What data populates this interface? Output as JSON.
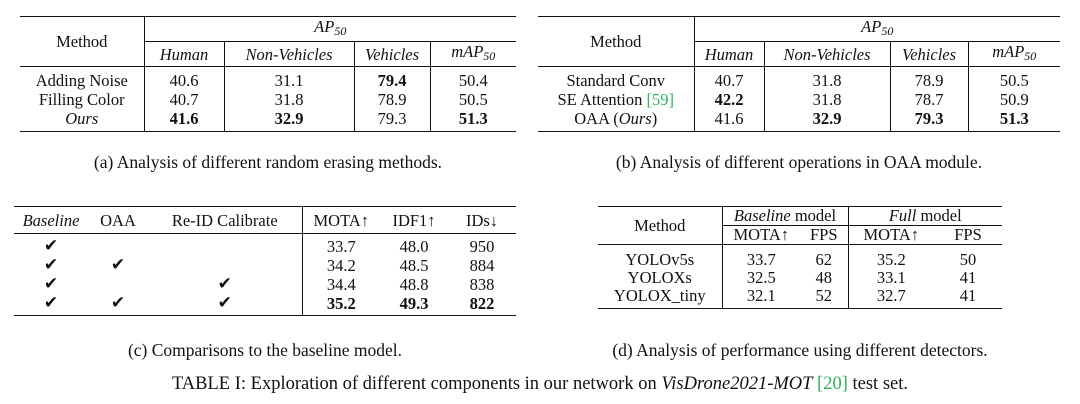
{
  "table_a": {
    "method_header": "Method",
    "group_header": "AP",
    "group_sub": "50",
    "col_human": "Human",
    "col_nonveh": "Non-Vehicles",
    "col_veh": "Vehicles",
    "col_map": "mAP",
    "col_map_sub": "50",
    "rows": [
      {
        "method": "Adding Noise",
        "human": "40.6",
        "nonveh": "31.1",
        "veh": "79.4",
        "map": "50.4"
      },
      {
        "method": "Filling Color",
        "human": "40.7",
        "nonveh": "31.8",
        "veh": "78.9",
        "map": "50.5"
      },
      {
        "method": "Ours",
        "human": "41.6",
        "nonveh": "32.9",
        "veh": "79.3",
        "map": "51.3"
      }
    ],
    "caption": "(a) Analysis of different random erasing methods."
  },
  "table_b": {
    "method_header": "Method",
    "group_header": "AP",
    "group_sub": "50",
    "col_human": "Human",
    "col_nonveh": "Non-Vehicles",
    "col_veh": "Vehicles",
    "col_map": "mAP",
    "col_map_sub": "50",
    "rows": [
      {
        "method": "Standard Conv",
        "human": "40.7",
        "nonveh": "31.8",
        "veh": "78.9",
        "map": "50.5"
      },
      {
        "method": "SE Attention",
        "ref": "[59]",
        "human": "42.2",
        "nonveh": "31.8",
        "veh": "78.7",
        "map": "50.9"
      },
      {
        "method": "OAA (",
        "method_it": "Ours",
        "method_end": ")",
        "human": "41.6",
        "nonveh": "32.9",
        "veh": "79.3",
        "map": "51.3"
      }
    ],
    "caption": "(b) Analysis of different operations in OAA module."
  },
  "table_c": {
    "col_baseline": "Baseline",
    "col_oaa": "OAA",
    "col_reid": "Re-ID Calibrate",
    "col_mota": "MOTA↑",
    "col_idf1": "IDF1↑",
    "col_ids": "IDs↓",
    "check": "✔",
    "rows": [
      {
        "mota": "33.7",
        "idf1": "48.0",
        "ids": "950"
      },
      {
        "mota": "34.2",
        "idf1": "48.5",
        "ids": "884"
      },
      {
        "mota": "34.4",
        "idf1": "48.8",
        "ids": "838"
      },
      {
        "mota": "35.2",
        "idf1": "49.3",
        "ids": "822"
      }
    ],
    "caption": "(c) Comparisons to the baseline model."
  },
  "table_d": {
    "method_header": "Method",
    "baseline_it": "Baseline",
    "baseline_rest": " model",
    "full_it": "Full",
    "full_rest": " model",
    "col_mota": "MOTA↑",
    "col_fps": "FPS",
    "rows": [
      {
        "method": "YOLOv5s",
        "b_mota": "33.7",
        "b_fps": "62",
        "f_mota": "35.2",
        "f_fps": "50"
      },
      {
        "method": "YOLOXs",
        "b_mota": "32.5",
        "b_fps": "48",
        "f_mota": "33.1",
        "f_fps": "41"
      },
      {
        "method": "YOLOX_tiny",
        "b_mota": "32.1",
        "b_fps": "52",
        "f_mota": "32.7",
        "f_fps": "41"
      }
    ],
    "caption": "(d) Analysis of performance using different detectors."
  },
  "main_caption": {
    "prefix": "TABLE I: Exploration of different components in our network on ",
    "dataset": "VisDrone2021-MOT",
    "space": " ",
    "ref": "[20]",
    "suffix": " test set."
  }
}
